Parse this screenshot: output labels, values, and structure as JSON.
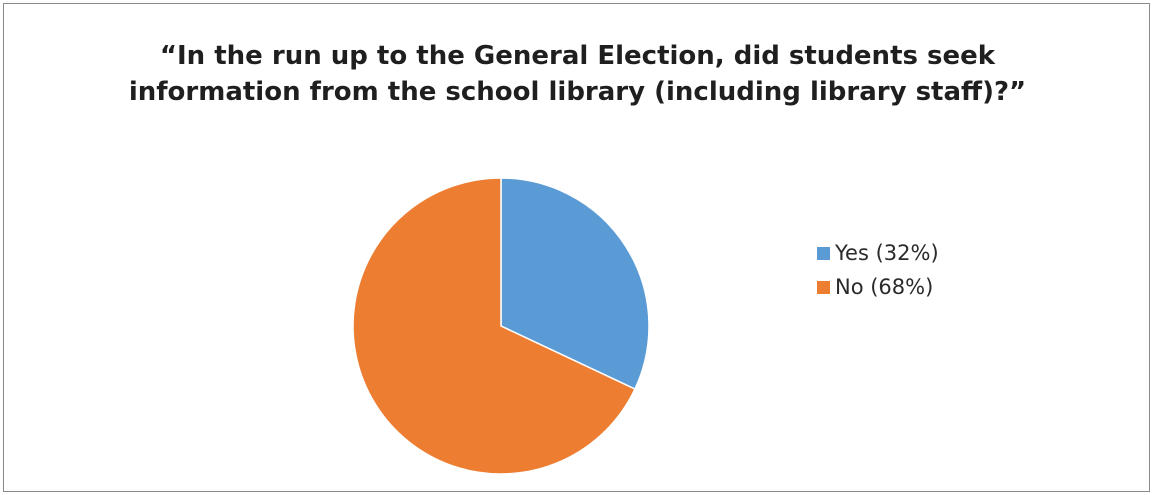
{
  "chart_data": {
    "type": "pie",
    "title": "“In the run up to the General Election, did students seek information from the school library (including library staff)?”",
    "slices": [
      {
        "label": "Yes (32%)",
        "value": 32,
        "color": "#5b9bd5"
      },
      {
        "label": "No (68%)",
        "value": 68,
        "color": "#ed7d31"
      }
    ],
    "legend_position": "right"
  }
}
